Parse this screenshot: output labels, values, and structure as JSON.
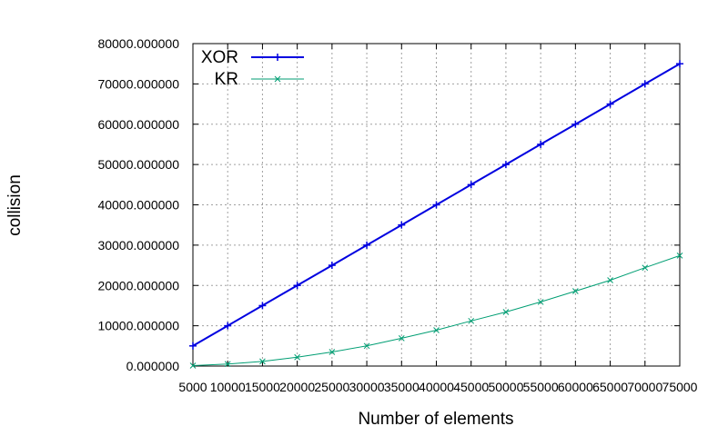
{
  "chart_data": {
    "type": "line",
    "title": "",
    "xlabel": "Number of elements",
    "ylabel": "collision",
    "x": [
      5000,
      10000,
      15000,
      20000,
      25000,
      30000,
      35000,
      40000,
      45000,
      50000,
      55000,
      60000,
      65000,
      70000,
      75000
    ],
    "xticks": [
      "5000",
      "10000",
      "15000",
      "20000",
      "25000",
      "30000",
      "35000",
      "40000",
      "45000",
      "50000",
      "55000",
      "60000",
      "65000",
      "70000",
      "75000"
    ],
    "xlim": [
      5000,
      75000
    ],
    "ylim": [
      0,
      80000
    ],
    "yticks": [
      "0.000000",
      "10000.000000",
      "20000.000000",
      "30000.000000",
      "40000.000000",
      "50000.000000",
      "60000.000000",
      "70000.000000",
      "80000.000000"
    ],
    "grid": true,
    "legend_position": "top-left",
    "series": [
      {
        "name": "XOR",
        "color": "#0000e0",
        "marker": "plus",
        "values": [
          5000,
          10000,
          15000,
          20000,
          25000,
          30000,
          35000,
          40000,
          45000,
          50000,
          55000,
          60000,
          65000,
          70000,
          75000
        ]
      },
      {
        "name": "KR",
        "color": "#009e73",
        "marker": "cross",
        "values": [
          120,
          500,
          1150,
          2200,
          3500,
          5000,
          6900,
          8900,
          11200,
          13400,
          15900,
          18600,
          21300,
          24400,
          27400
        ]
      }
    ]
  }
}
